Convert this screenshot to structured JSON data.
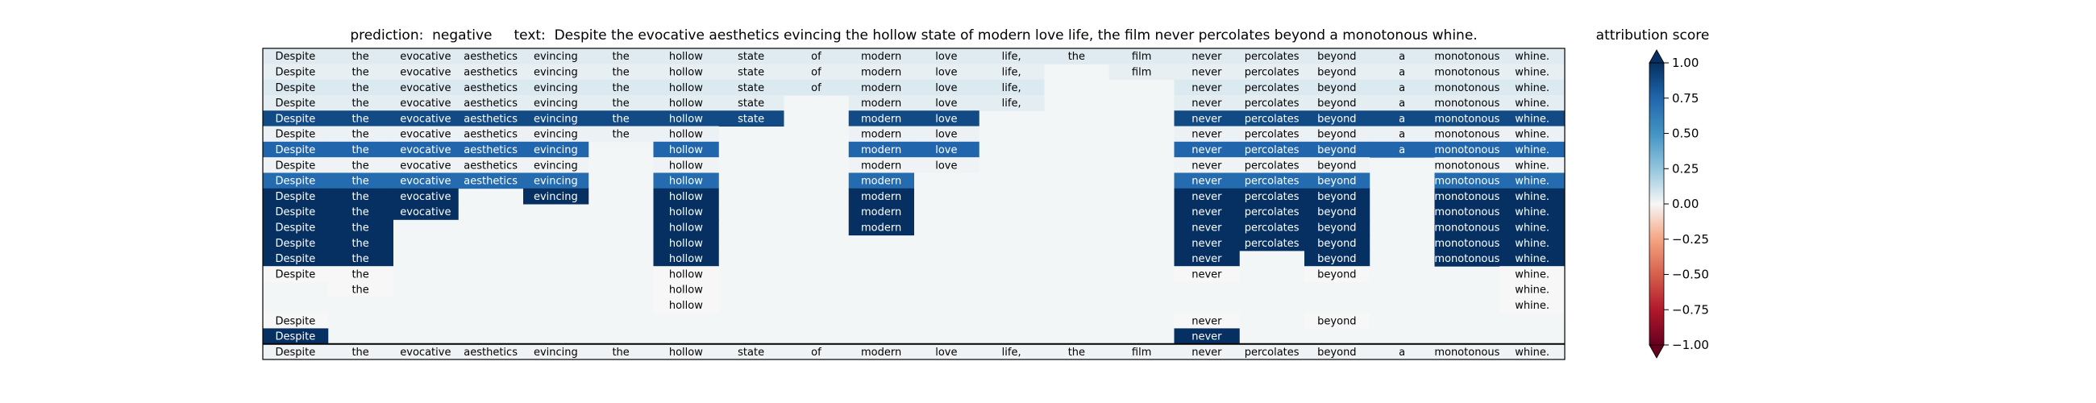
{
  "chart_data": {
    "type": "heatmap",
    "title": "prediction:  negative     text:  Despite the evocative aesthetics evincing the hollow state of modern love life, the film never percolates beyond a monotonous whine.",
    "prediction": "negative",
    "colorbar": {
      "label": "attribution score",
      "min": -1.0,
      "max": 1.0,
      "ticks": [
        "1.00",
        "0.75",
        "0.50",
        "0.25",
        "0.00",
        "−0.25",
        "−0.50",
        "−0.75",
        "−1.00"
      ],
      "tick_values": [
        1.0,
        0.75,
        0.5,
        0.25,
        0.0,
        -0.25,
        -0.5,
        -0.75,
        -1.0
      ],
      "colormap": "RdBu",
      "extend": "both"
    },
    "tokens": [
      "Despite",
      "the",
      "evocative",
      "aesthetics",
      "evincing",
      "the",
      "hollow",
      "state",
      "of",
      "modern",
      "love",
      "life,",
      "the",
      "film",
      "never",
      "percolates",
      "beyond",
      "a",
      "monotonous",
      "whine."
    ],
    "rows": [
      [
        0.06,
        0.06,
        0.06,
        0.06,
        0.06,
        0.06,
        0.06,
        0.06,
        0.06,
        0.06,
        0.06,
        0.06,
        0.06,
        0.06,
        0.06,
        0.06,
        0.06,
        0.06,
        0.06,
        0.06
      ],
      [
        0.04,
        0.04,
        0.04,
        0.04,
        0.04,
        0.04,
        0.04,
        0.04,
        0.04,
        0.04,
        0.04,
        0.04,
        null,
        0.04,
        0.04,
        0.04,
        0.04,
        0.04,
        0.04,
        0.04
      ],
      [
        0.07,
        0.07,
        0.07,
        0.07,
        0.07,
        0.07,
        0.07,
        0.07,
        0.07,
        0.07,
        0.07,
        0.07,
        null,
        null,
        0.07,
        0.07,
        0.07,
        0.07,
        0.07,
        0.07
      ],
      [
        0.05,
        0.05,
        0.05,
        0.05,
        0.05,
        0.05,
        0.05,
        0.05,
        null,
        0.05,
        0.05,
        0.05,
        null,
        null,
        0.05,
        0.05,
        0.05,
        0.05,
        0.05,
        0.05
      ],
      [
        0.88,
        0.88,
        0.88,
        0.88,
        0.88,
        0.88,
        0.88,
        0.88,
        null,
        0.88,
        0.88,
        null,
        null,
        null,
        0.88,
        0.88,
        0.88,
        0.88,
        0.88,
        0.88
      ],
      [
        0.03,
        0.03,
        0.03,
        0.03,
        0.03,
        0.03,
        0.03,
        null,
        null,
        0.03,
        0.03,
        null,
        null,
        null,
        0.03,
        0.03,
        0.03,
        0.03,
        0.03,
        0.03
      ],
      [
        0.75,
        0.75,
        0.75,
        0.75,
        0.75,
        null,
        0.75,
        null,
        null,
        0.75,
        0.75,
        null,
        null,
        null,
        0.75,
        0.75,
        0.75,
        0.75,
        0.75,
        0.75
      ],
      [
        0.02,
        0.02,
        0.02,
        0.02,
        0.02,
        null,
        0.02,
        null,
        null,
        0.02,
        0.02,
        null,
        null,
        null,
        0.02,
        0.02,
        0.02,
        null,
        0.02,
        0.02
      ],
      [
        0.72,
        0.72,
        0.72,
        0.72,
        0.72,
        null,
        0.72,
        null,
        null,
        0.72,
        null,
        null,
        null,
        null,
        0.72,
        0.72,
        0.72,
        null,
        0.72,
        0.72
      ],
      [
        1.0,
        1.0,
        1.0,
        null,
        1.0,
        null,
        1.0,
        null,
        null,
        1.0,
        null,
        null,
        null,
        null,
        1.0,
        1.0,
        1.0,
        null,
        1.0,
        1.0
      ],
      [
        1.0,
        1.0,
        1.0,
        null,
        null,
        null,
        1.0,
        null,
        null,
        1.0,
        null,
        null,
        null,
        null,
        1.0,
        1.0,
        1.0,
        null,
        1.0,
        1.0
      ],
      [
        1.0,
        1.0,
        null,
        null,
        null,
        null,
        1.0,
        null,
        null,
        1.0,
        null,
        null,
        null,
        null,
        1.0,
        1.0,
        1.0,
        null,
        1.0,
        1.0
      ],
      [
        1.0,
        1.0,
        null,
        null,
        null,
        null,
        1.0,
        null,
        null,
        null,
        null,
        null,
        null,
        null,
        1.0,
        1.0,
        1.0,
        null,
        1.0,
        1.0
      ],
      [
        1.0,
        1.0,
        null,
        null,
        null,
        null,
        1.0,
        null,
        null,
        null,
        null,
        null,
        null,
        null,
        1.0,
        null,
        1.0,
        null,
        1.0,
        1.0
      ],
      [
        0.0,
        0.0,
        null,
        null,
        null,
        null,
        0.0,
        null,
        null,
        null,
        null,
        null,
        null,
        null,
        0.0,
        null,
        0.0,
        null,
        null,
        0.0
      ],
      [
        null,
        0.0,
        null,
        null,
        null,
        null,
        0.0,
        null,
        null,
        null,
        null,
        null,
        null,
        null,
        null,
        null,
        null,
        null,
        null,
        0.0
      ],
      [
        null,
        null,
        null,
        null,
        null,
        null,
        0.0,
        null,
        null,
        null,
        null,
        null,
        null,
        null,
        null,
        null,
        null,
        null,
        null,
        0.0
      ],
      [
        0.0,
        null,
        null,
        null,
        null,
        null,
        null,
        null,
        null,
        null,
        null,
        null,
        null,
        null,
        0.0,
        null,
        0.0,
        null,
        null,
        null
      ],
      [
        1.0,
        null,
        null,
        null,
        null,
        null,
        null,
        null,
        null,
        null,
        null,
        null,
        null,
        null,
        1.0,
        null,
        null,
        null,
        null,
        null
      ],
      [
        0.02,
        0.02,
        0.02,
        0.02,
        0.02,
        0.02,
        0.02,
        0.02,
        0.02,
        0.02,
        0.02,
        0.02,
        0.02,
        0.02,
        0.02,
        0.02,
        0.02,
        0.02,
        0.02,
        0.02
      ]
    ],
    "empty_cell_color": "#f3f6f6"
  }
}
